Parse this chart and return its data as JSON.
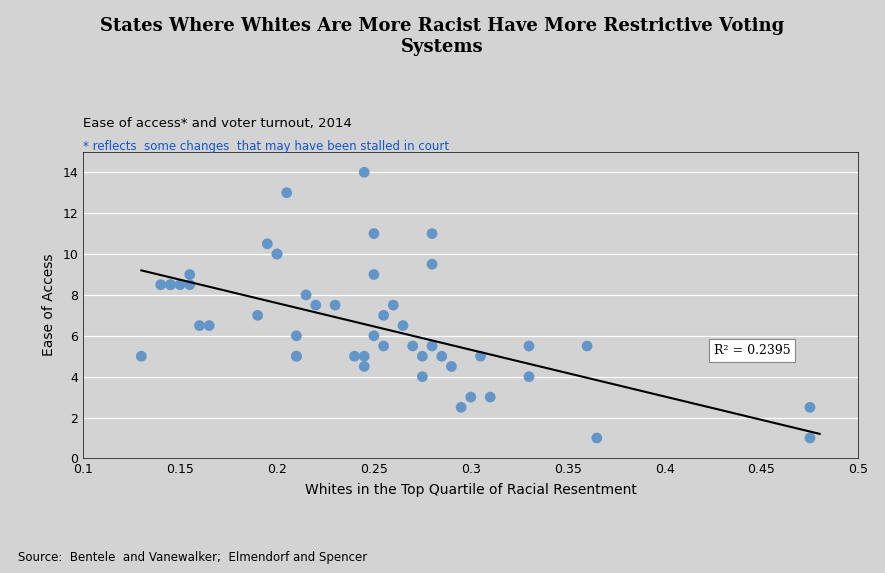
{
  "title": "States Where Whites Are More Racist Have More Restrictive Voting\nSystems",
  "subtitle": "Ease of access* and voter turnout, 2014",
  "footnote": "* reflects  some changes  that may have been stalled in court",
  "source": "Source:  Bentele  and Vanewalker;  Elmendorf and Spencer",
  "xlabel": "Whites in the Top Quartile of Racial Resentment",
  "ylabel": "Ease of Access",
  "r2_label": "R² = 0.2395",
  "xlim": [
    0.1,
    0.5
  ],
  "ylim": [
    0,
    15
  ],
  "xticks": [
    0.1,
    0.15,
    0.2,
    0.25,
    0.3,
    0.35,
    0.4,
    0.45,
    0.5
  ],
  "yticks": [
    0,
    2,
    4,
    6,
    8,
    10,
    12,
    14
  ],
  "scatter_color": "#6495c8",
  "line_color": "#000000",
  "bg_color": "#d3d3d3",
  "outer_bg": "#d3d3d3",
  "x_data": [
    0.13,
    0.14,
    0.145,
    0.145,
    0.15,
    0.155,
    0.155,
    0.16,
    0.165,
    0.19,
    0.195,
    0.2,
    0.2,
    0.205,
    0.21,
    0.21,
    0.21,
    0.215,
    0.22,
    0.23,
    0.24,
    0.245,
    0.245,
    0.245,
    0.25,
    0.25,
    0.25,
    0.255,
    0.255,
    0.26,
    0.265,
    0.27,
    0.275,
    0.275,
    0.28,
    0.28,
    0.28,
    0.285,
    0.29,
    0.295,
    0.3,
    0.305,
    0.31,
    0.33,
    0.33,
    0.36,
    0.365,
    0.475,
    0.475
  ],
  "y_data": [
    5.0,
    8.5,
    8.5,
    8.5,
    8.5,
    8.5,
    9.0,
    6.5,
    6.5,
    7.0,
    10.5,
    10.0,
    10.0,
    13.0,
    6.0,
    5.0,
    5.0,
    8.0,
    7.5,
    7.5,
    5.0,
    5.0,
    4.5,
    14.0,
    11.0,
    9.0,
    6.0,
    7.0,
    5.5,
    7.5,
    6.5,
    5.5,
    5.0,
    4.0,
    11.0,
    9.5,
    5.5,
    5.0,
    4.5,
    2.5,
    3.0,
    5.0,
    3.0,
    5.5,
    4.0,
    5.5,
    1.0,
    1.0,
    2.5
  ],
  "trendline_x": [
    0.13,
    0.48
  ],
  "trendline_y": [
    9.2,
    1.2
  ]
}
